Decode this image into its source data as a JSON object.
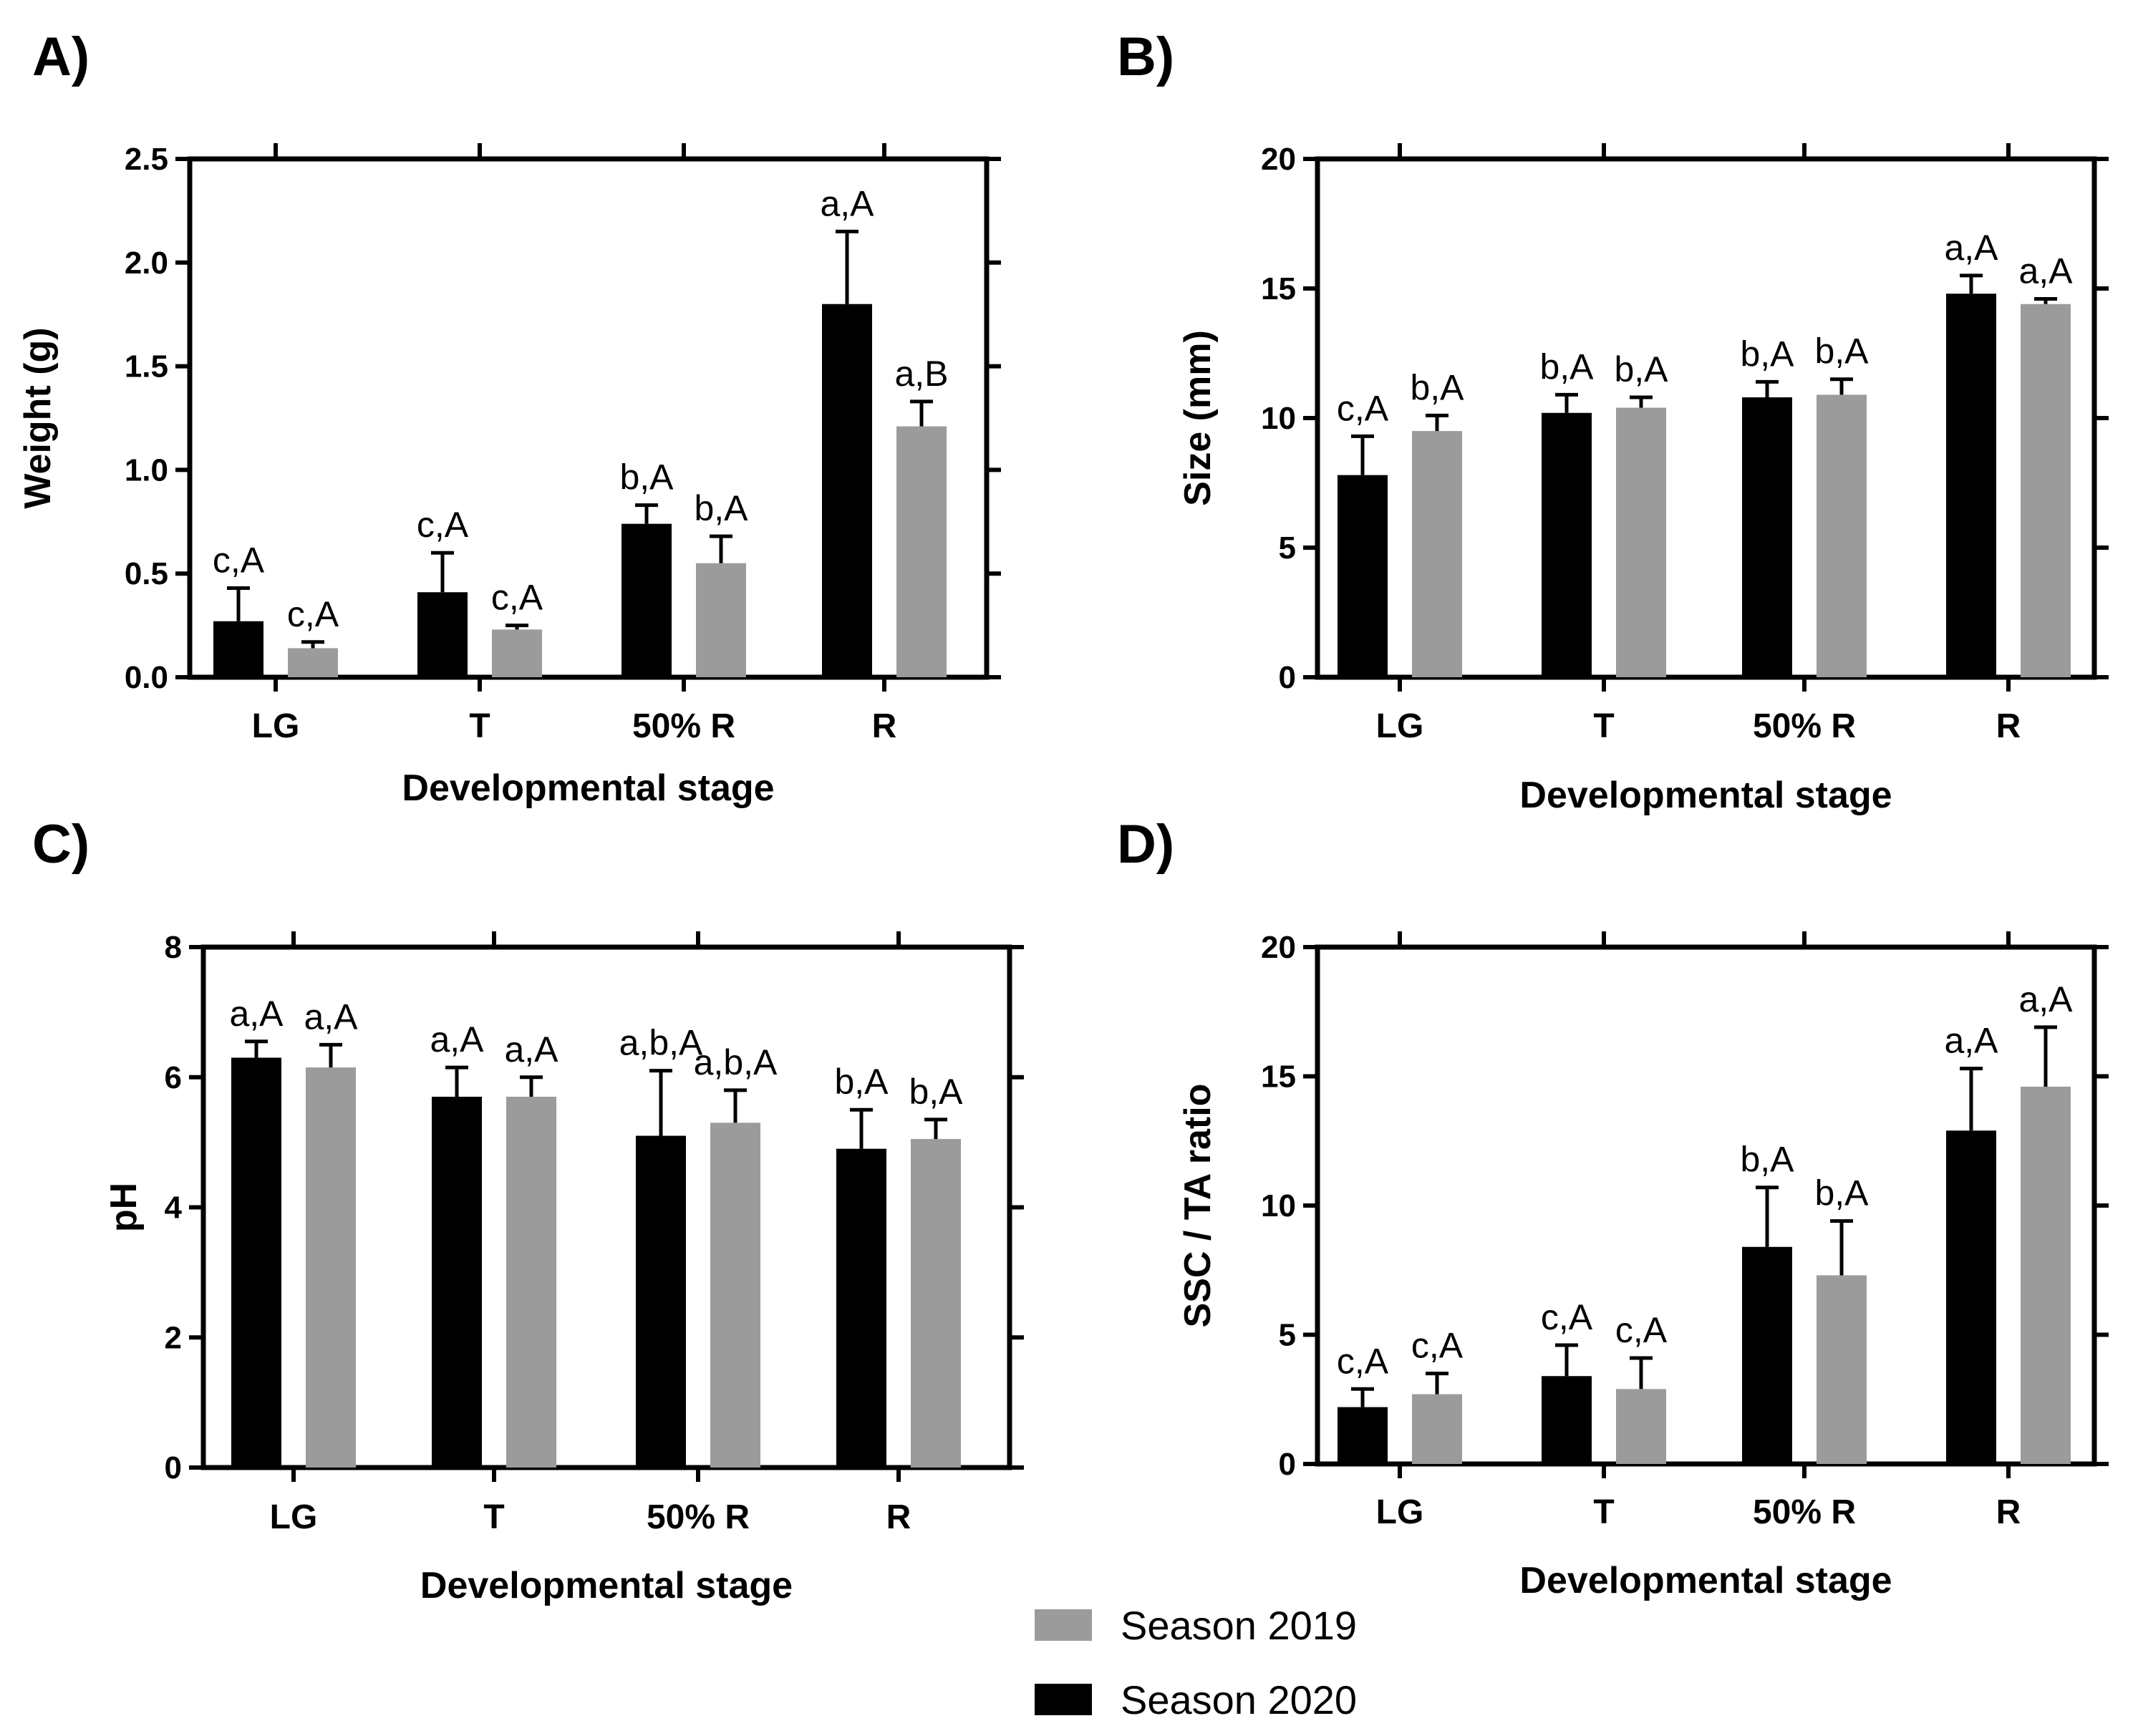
{
  "colors": {
    "season_2019": "#9b9b9b",
    "season_2020": "#000000"
  },
  "legend": [
    {
      "label": "Season 2019",
      "color": "#9b9b9b"
    },
    {
      "label": "Season 2020",
      "color": "#000000"
    }
  ],
  "chart_data": [
    {
      "panel": "A)",
      "type": "bar",
      "xlabel": "Developmental stage",
      "ylabel": "Weight (g)",
      "categories": [
        "LG",
        "T",
        "50% R",
        "R"
      ],
      "ylim": [
        0,
        2.5
      ],
      "yticks": [
        "0.0",
        "0.5",
        "1.0",
        "1.5",
        "2.0",
        "2.5"
      ],
      "ytick_values": [
        0,
        0.5,
        1.0,
        1.5,
        2.0,
        2.5
      ],
      "series": [
        {
          "name": "Season 2020",
          "values": [
            0.27,
            0.41,
            0.74,
            1.8
          ],
          "errors": [
            0.16,
            0.19,
            0.09,
            0.35
          ],
          "letters": [
            "c,A",
            "c,A",
            "b,A",
            "a,A"
          ]
        },
        {
          "name": "Season 2019",
          "values": [
            0.14,
            0.23,
            0.55,
            1.21
          ],
          "errors": [
            0.03,
            0.02,
            0.13,
            0.12
          ],
          "letters": [
            "c,A",
            "c,A",
            "b,A",
            "a,B"
          ]
        }
      ]
    },
    {
      "panel": "B)",
      "type": "bar",
      "xlabel": "Developmental stage",
      "ylabel": "Size (mm)",
      "categories": [
        "LG",
        "T",
        "50% R",
        "R"
      ],
      "ylim": [
        0,
        20
      ],
      "yticks": [
        "0",
        "5",
        "10",
        "15",
        "20"
      ],
      "ytick_values": [
        0,
        5,
        10,
        15,
        20
      ],
      "series": [
        {
          "name": "Season 2020",
          "values": [
            7.8,
            10.2,
            10.8,
            14.8
          ],
          "errors": [
            1.5,
            0.7,
            0.6,
            0.7
          ],
          "letters": [
            "c,A",
            "b,A",
            "b,A",
            "a,A"
          ]
        },
        {
          "name": "Season 2019",
          "values": [
            9.5,
            10.4,
            10.9,
            14.4
          ],
          "errors": [
            0.6,
            0.4,
            0.6,
            0.2
          ],
          "letters": [
            "b,A",
            "b,A",
            "b,A",
            "a,A"
          ]
        }
      ]
    },
    {
      "panel": "C)",
      "type": "bar",
      "xlabel": "Developmental stage",
      "ylabel": "pH",
      "categories": [
        "LG",
        "T",
        "50% R",
        "R"
      ],
      "ylim": [
        0,
        8
      ],
      "yticks": [
        "0",
        "2",
        "4",
        "6",
        "8"
      ],
      "ytick_values": [
        0,
        2,
        4,
        6,
        8
      ],
      "series": [
        {
          "name": "Season 2020",
          "values": [
            6.3,
            5.7,
            5.1,
            4.9
          ],
          "errors": [
            0.25,
            0.45,
            1.0,
            0.6
          ],
          "letters": [
            "a,A",
            "a,A",
            "a,b,A",
            "b,A"
          ]
        },
        {
          "name": "Season 2019",
          "values": [
            6.15,
            5.7,
            5.3,
            5.05
          ],
          "errors": [
            0.35,
            0.3,
            0.5,
            0.3
          ],
          "letters": [
            "a,A",
            "a,A",
            "a,b,A",
            "b,A"
          ]
        }
      ]
    },
    {
      "panel": "D)",
      "type": "bar",
      "xlabel": "Developmental stage",
      "ylabel": "SSC / TA ratio",
      "categories": [
        "LG",
        "T",
        "50% R",
        "R"
      ],
      "ylim": [
        0,
        20
      ],
      "yticks": [
        "0",
        "5",
        "10",
        "15",
        "20"
      ],
      "ytick_values": [
        0,
        5,
        10,
        15,
        20
      ],
      "series": [
        {
          "name": "Season 2020",
          "values": [
            2.2,
            3.4,
            8.4,
            12.9
          ],
          "errors": [
            0.7,
            1.2,
            2.3,
            2.4
          ],
          "letters": [
            "c,A",
            "c,A",
            "b,A",
            "a,A"
          ]
        },
        {
          "name": "Season 2019",
          "values": [
            2.7,
            2.9,
            7.3,
            14.6
          ],
          "errors": [
            0.8,
            1.2,
            2.1,
            2.3
          ],
          "letters": [
            "c,A",
            "c,A",
            "b,A",
            "a,A"
          ]
        }
      ]
    }
  ]
}
